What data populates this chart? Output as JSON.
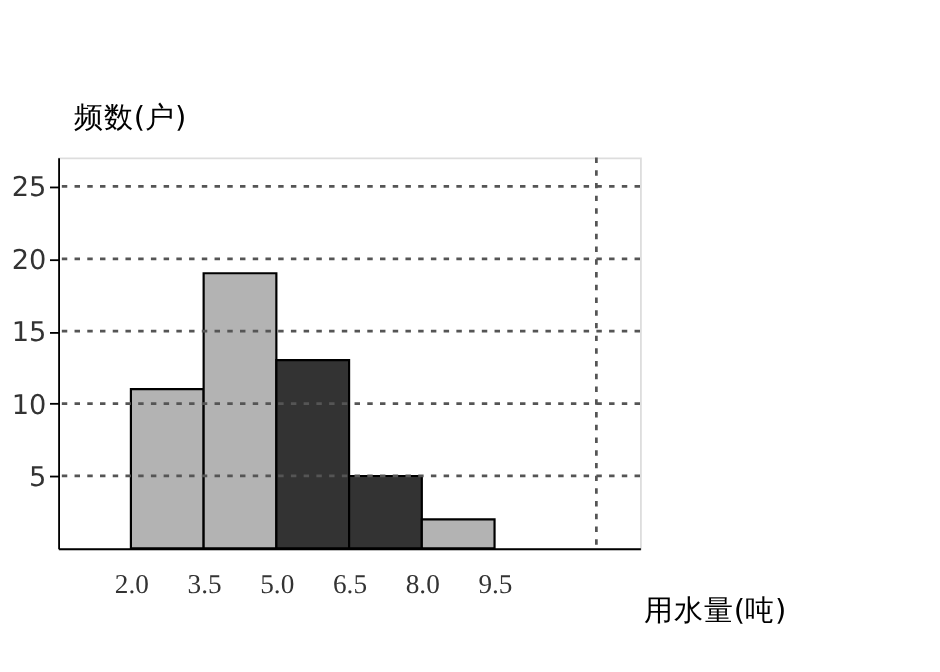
{
  "chart_data": {
    "type": "histogram",
    "xlabel": "用水量(吨)",
    "ylabel": "频数(户)",
    "bins": [
      2.0,
      3.5,
      5.0,
      6.5,
      8.0,
      9.5
    ],
    "values": [
      11,
      19,
      13,
      5,
      2
    ],
    "colors": [
      "#b3b3b3",
      "#b3b3b3",
      "#333333",
      "#333333",
      "#b3b3b3"
    ],
    "xlim": [
      0.5,
      12.5
    ],
    "xticks": [
      {
        "value": 2.0,
        "label": "2.0"
      },
      {
        "value": 3.5,
        "label": "3.5"
      },
      {
        "value": 5.0,
        "label": "5.0"
      },
      {
        "value": 6.5,
        "label": "6.5"
      },
      {
        "value": 8.0,
        "label": "8.0"
      },
      {
        "value": 9.5,
        "label": "9.5"
      }
    ],
    "ylim": [
      0,
      27
    ],
    "yticks": [
      5,
      10,
      15,
      20,
      25
    ],
    "grid": "y",
    "ref_lines": [
      {
        "axis": "x",
        "value": 11.6,
        "label": null,
        "line_style": "dotted"
      }
    ]
  }
}
